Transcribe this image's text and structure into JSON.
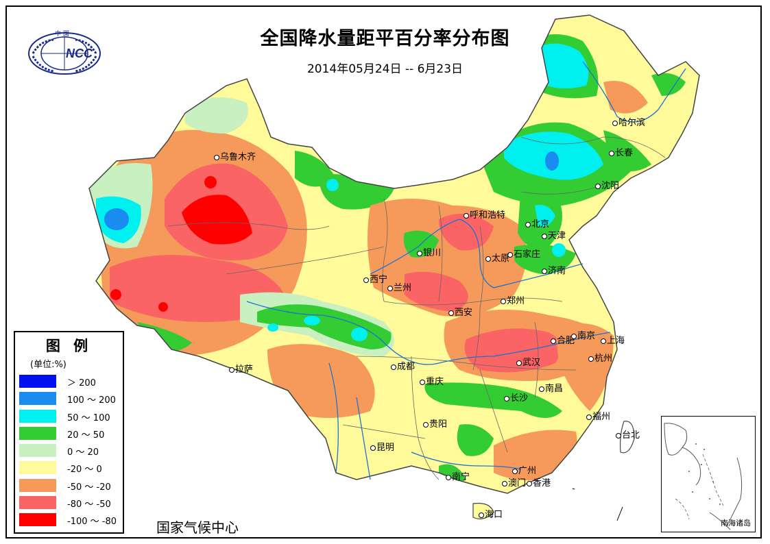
{
  "title": "全国降水量距平百分率分布图",
  "subtitle": "2014年05月24日 -- 6月23日",
  "logo": {
    "text": "NCC",
    "top_text": "中 国"
  },
  "legend": {
    "title": "图 例",
    "unit": "(单位:%)",
    "items": [
      {
        "label": "＞ 200",
        "color": "#0010f0"
      },
      {
        "label": "100 ～ 200",
        "color": "#1a8cf0"
      },
      {
        "label": "50 ～ 100",
        "color": "#00f0f0"
      },
      {
        "label": "20 ～ 50",
        "color": "#33cc33"
      },
      {
        "label": "0 ～ 20",
        "color": "#c8f0c0"
      },
      {
        "label": "-20 ～ 0",
        "color": "#fffa9a"
      },
      {
        "label": "-50 ～ -20",
        "color": "#f59a5a"
      },
      {
        "label": "-80 ～ -50",
        "color": "#fa6464"
      },
      {
        "label": "-100 ～ -80",
        "color": "#ff0000"
      }
    ]
  },
  "organization": "国家气候中心",
  "inset_label": "南海诸岛",
  "cities": [
    {
      "name": "乌鲁木齐"
    },
    {
      "name": "哈尔滨"
    },
    {
      "name": "长春"
    },
    {
      "name": "沈阳"
    },
    {
      "name": "呼和浩特"
    },
    {
      "name": "北京"
    },
    {
      "name": "天津"
    },
    {
      "name": "石家庄"
    },
    {
      "name": "太原"
    },
    {
      "name": "银川"
    },
    {
      "name": "西宁"
    },
    {
      "name": "兰州"
    },
    {
      "name": "济南"
    },
    {
      "name": "郑州"
    },
    {
      "name": "西安"
    },
    {
      "name": "合肥"
    },
    {
      "name": "南京"
    },
    {
      "name": "上海"
    },
    {
      "name": "武汉"
    },
    {
      "name": "杭州"
    },
    {
      "name": "拉萨"
    },
    {
      "name": "成都"
    },
    {
      "name": "重庆"
    },
    {
      "name": "南昌"
    },
    {
      "name": "长沙"
    },
    {
      "name": "贵阳"
    },
    {
      "name": "福州"
    },
    {
      "name": "台北"
    },
    {
      "name": "昆明"
    },
    {
      "name": "广州"
    },
    {
      "name": "南宁"
    },
    {
      "name": "澳门"
    },
    {
      "name": "香港"
    },
    {
      "name": "海口"
    }
  ]
}
